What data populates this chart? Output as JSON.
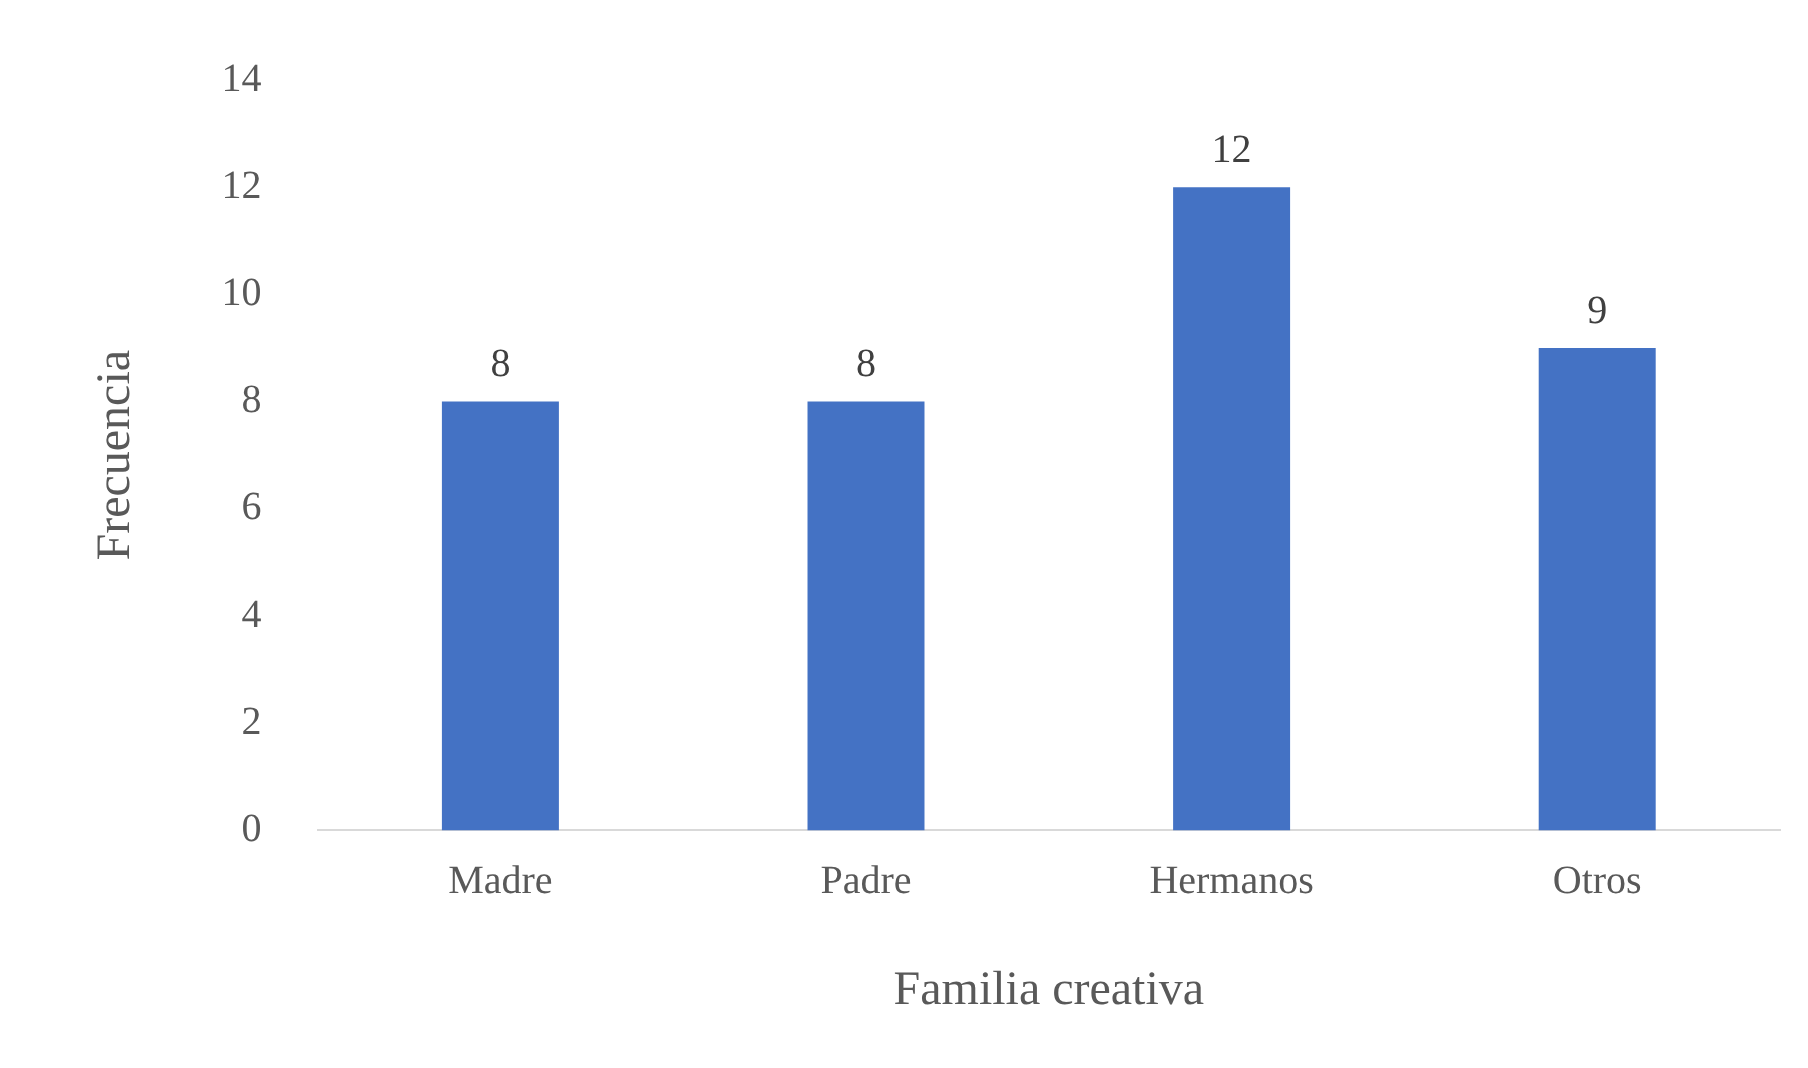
{
  "chart_data": {
    "type": "bar",
    "xlabel": "Familia creativa",
    "ylabel": "Frecuencia",
    "categories": [
      "Madre",
      "Padre",
      "Hermanos",
      "Otros"
    ],
    "values": [
      8,
      8,
      12,
      9
    ],
    "color": "#4472c4",
    "ylim": [
      0,
      14
    ],
    "yticks": [
      0,
      2,
      4,
      6,
      8,
      10,
      12,
      14
    ],
    "grid": false,
    "legend": false,
    "data_labels": true
  }
}
